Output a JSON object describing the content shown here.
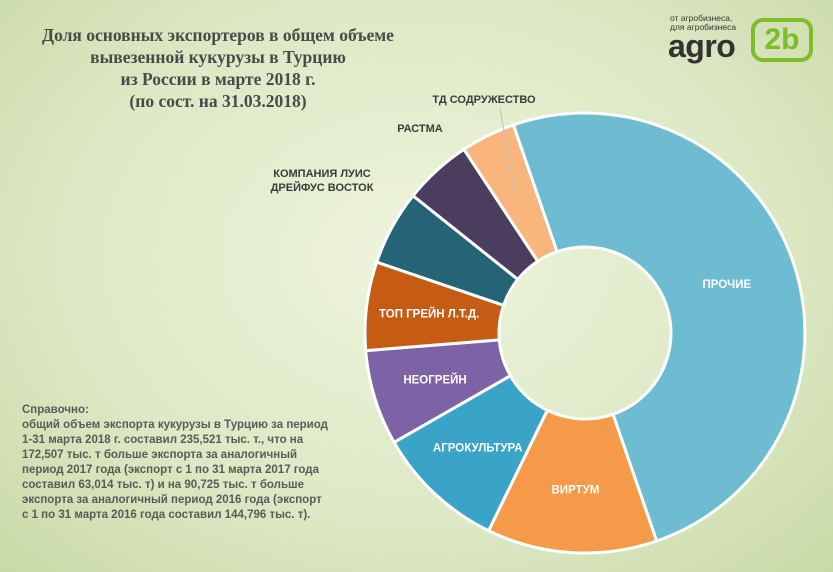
{
  "title_lines": [
    "Доля основных экспортеров в общем объеме",
    "вывезенной кукурузы в  Турцию",
    "из России в марте 2018 г.",
    "(по сост. на 31.03.2018)"
  ],
  "logo": {
    "tagline_1": "от агробизнеса,",
    "tagline_2": "для агробизнеса",
    "word": "agro",
    "badge": "2b"
  },
  "note_lines": [
    "Справочно:",
    "общий объем экспорта кукурузы  в Турцию за период",
    "1-31 марта 2018 г. составил 235,521 тыс. т., что на",
    "172,507 тыс. т больше экспорта за аналогичный",
    "период 2017 года (экспорт с 1 по 31 марта 2017 года",
    "составил 63,014 тыс. т) и на 90,725 тыс. т больше",
    "экспорта за аналогичный период 2016 года (экспорт",
    "с 1 по 31 марта 2016 года составил 144,796 тыс. т)."
  ],
  "chart_data": {
    "type": "pie",
    "donut": true,
    "slices": [
      {
        "label": "ПРОЧИЕ",
        "value": 50.0,
        "color": "#6dbcd2",
        "label_pos": "inside"
      },
      {
        "label": "ВИРТУМ",
        "value": 12.5,
        "color": "#f49a48",
        "label_pos": "inside"
      },
      {
        "label": "АГРОКУЛЬТУРА",
        "value": 9.5,
        "color": "#3aa4c8",
        "label_pos": "inside"
      },
      {
        "label": "НЕОГРЕЙН",
        "value": 7.0,
        "color": "#7d62a5",
        "label_pos": "inside"
      },
      {
        "label": "ТОП ГРЕЙН Л.Т.Д.",
        "value": 6.5,
        "color": "#c65b14",
        "label_pos": "inside"
      },
      {
        "label": "КОМПАНИЯ ЛУИС ДРЕЙФУС ВОСТОК",
        "value": 5.5,
        "color": "#246476",
        "label_pos": "outside"
      },
      {
        "label": "РАСТМА",
        "value": 5.0,
        "color": "#4b3d5e",
        "label_pos": "outside"
      },
      {
        "label": "ТД СОДРУЖЕСТВО",
        "value": 4.0,
        "color": "#f8b57c",
        "label_pos": "outside"
      }
    ]
  }
}
